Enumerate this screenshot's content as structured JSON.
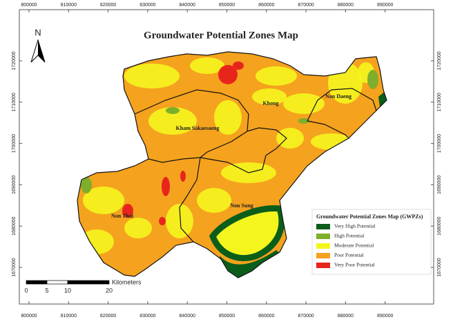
{
  "title": "Groundwater Potential Zones Map",
  "north": "N",
  "districts": [
    "Khong",
    "Non Daeng",
    "Kham Sakaesaeng",
    "Non Sung",
    "Non Thai"
  ],
  "legend": {
    "title": "Groundwater Potential Zones Map (GWPZs)",
    "items": [
      {
        "label": "Very High Potential",
        "color": "#0b5e1a"
      },
      {
        "label": "High Potential",
        "color": "#7fae2a"
      },
      {
        "label": "Moderate Potential",
        "color": "#f5f51e"
      },
      {
        "label": "Poor Potential",
        "color": "#f5a21e"
      },
      {
        "label": "Very Poor Potential",
        "color": "#e8251c"
      }
    ]
  },
  "scale": {
    "labels": [
      0,
      5,
      10,
      20
    ],
    "unit": "Kilometers"
  },
  "xticks": [
    800000,
    810000,
    820000,
    830000,
    840000,
    850000,
    860000,
    870000,
    880000,
    890000
  ],
  "yticks": [
    1720000,
    1710000,
    1700000,
    1690000,
    1680000,
    1670000
  ]
}
